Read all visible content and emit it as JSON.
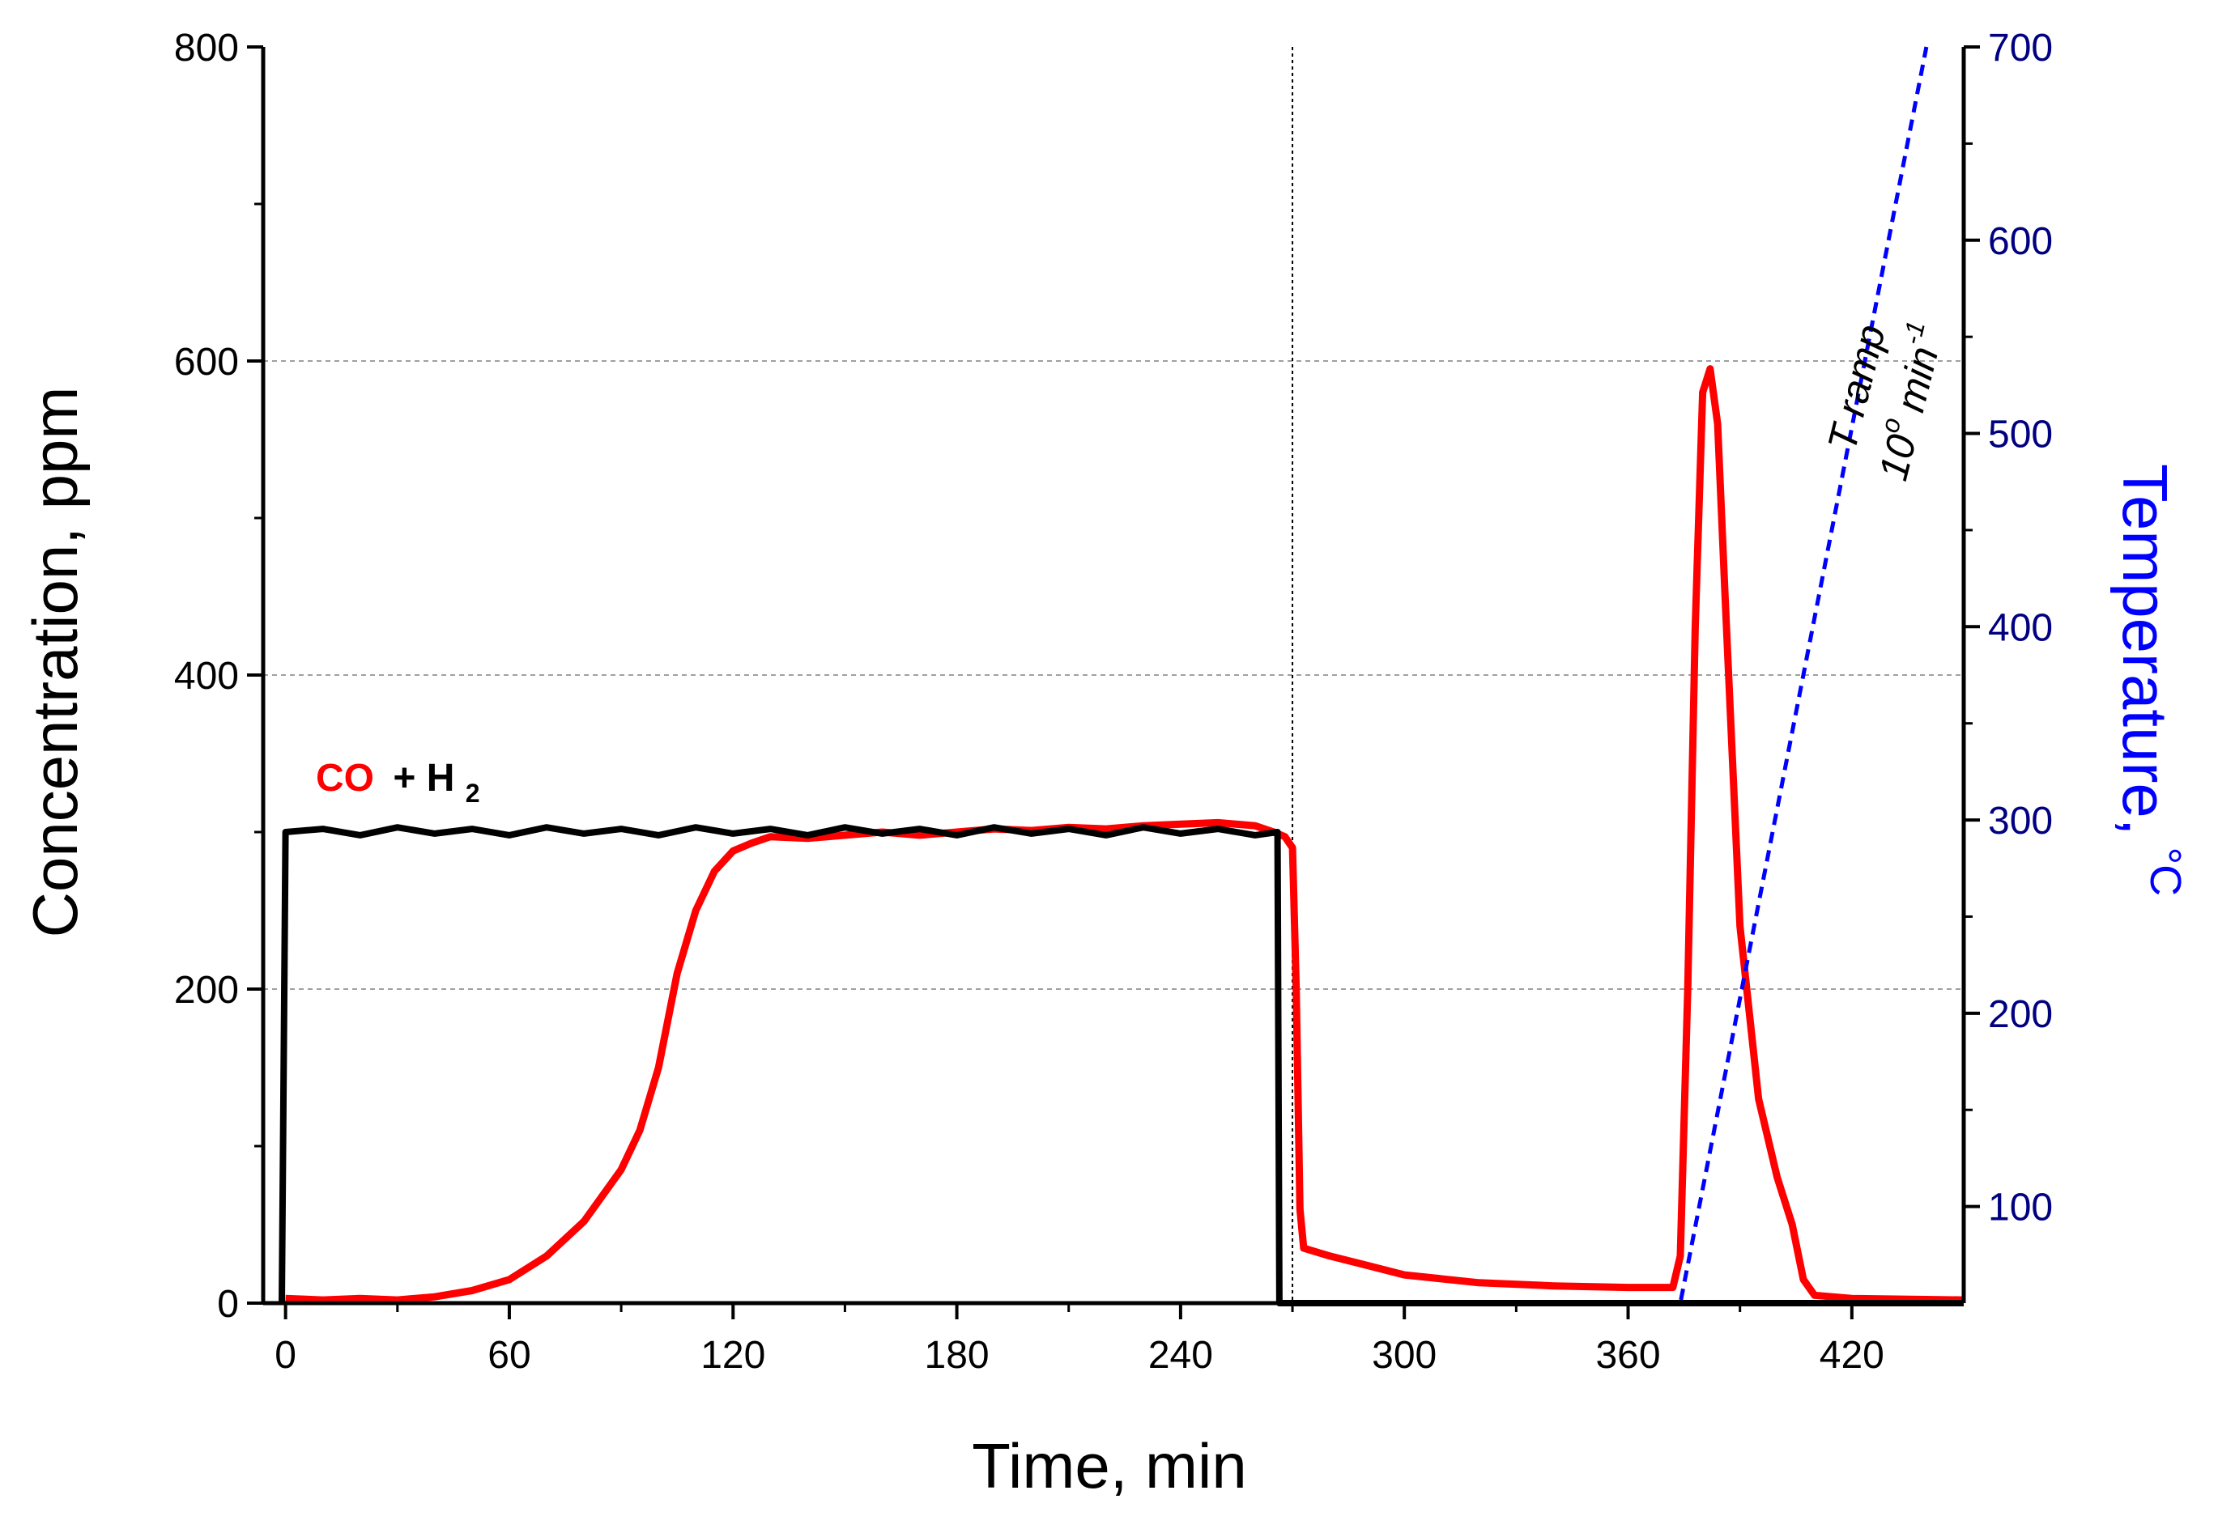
{
  "chart_data": {
    "type": "line",
    "title": "",
    "xlabel": "Time, min",
    "ylabel": "Concentration, ppm",
    "y2label": "Temperature,",
    "y2label_unit": "°C",
    "xlim": [
      -6,
      450
    ],
    "ylim": [
      0,
      800
    ],
    "y2lim": [
      50,
      700
    ],
    "x_ticks": [
      0,
      60,
      120,
      180,
      240,
      300,
      360,
      420
    ],
    "y_ticks": [
      0,
      200,
      400,
      600,
      800
    ],
    "y2_ticks": [
      100,
      200,
      300,
      400,
      500,
      600,
      700
    ],
    "grid_y": [
      200,
      400,
      600
    ],
    "vertical_marker_x": 270,
    "colors": {
      "co": "#ff0000",
      "h2": "#000000",
      "temperature": "#0000ff",
      "right_axis": "#000080",
      "grid": "#a0a0a0"
    },
    "legend": {
      "co_label": "CO",
      "plus_label": "+ H",
      "h2_sub": "2"
    },
    "annotation": {
      "line1": "T ramp",
      "line2_prefix": "10",
      "line2_deg": "o",
      "line2_unit": " min",
      "line2_exp": "-1"
    },
    "series": [
      {
        "name": "CO",
        "axis": "left",
        "x": [
          0,
          10,
          20,
          30,
          40,
          50,
          60,
          70,
          80,
          90,
          95,
          100,
          105,
          110,
          115,
          120,
          125,
          130,
          140,
          150,
          160,
          170,
          180,
          190,
          200,
          210,
          220,
          230,
          240,
          250,
          260,
          265,
          268,
          270,
          271,
          272,
          273,
          280,
          290,
          300,
          320,
          340,
          360,
          372,
          374,
          376,
          378,
          380,
          382,
          384,
          386,
          390,
          395,
          400,
          404,
          407,
          410,
          420,
          450
        ],
        "values": [
          3,
          2,
          3,
          2,
          4,
          8,
          15,
          30,
          52,
          85,
          110,
          150,
          210,
          250,
          275,
          288,
          293,
          297,
          296,
          298,
          300,
          298,
          300,
          302,
          301,
          303,
          302,
          304,
          305,
          306,
          304,
          300,
          297,
          290,
          200,
          60,
          35,
          30,
          24,
          18,
          13,
          11,
          10,
          10,
          30,
          200,
          430,
          580,
          595,
          560,
          450,
          240,
          130,
          80,
          50,
          15,
          5,
          3,
          2
        ]
      },
      {
        "name": "H2",
        "axis": "left",
        "x": [
          -1,
          0,
          10,
          20,
          30,
          40,
          50,
          60,
          70,
          80,
          90,
          100,
          110,
          120,
          130,
          140,
          150,
          160,
          170,
          180,
          190,
          200,
          210,
          220,
          230,
          240,
          250,
          260,
          266,
          266.5,
          268,
          450
        ],
        "values": [
          0,
          300,
          302,
          298,
          303,
          299,
          302,
          298,
          303,
          299,
          302,
          298,
          303,
          299,
          302,
          298,
          303,
          299,
          302,
          298,
          303,
          299,
          302,
          298,
          303,
          299,
          302,
          298,
          300,
          0,
          0,
          0
        ]
      },
      {
        "name": "Temperature",
        "axis": "right",
        "x": [
          270,
          374,
          440
        ],
        "values": [
          50,
          50,
          700
        ]
      }
    ]
  }
}
